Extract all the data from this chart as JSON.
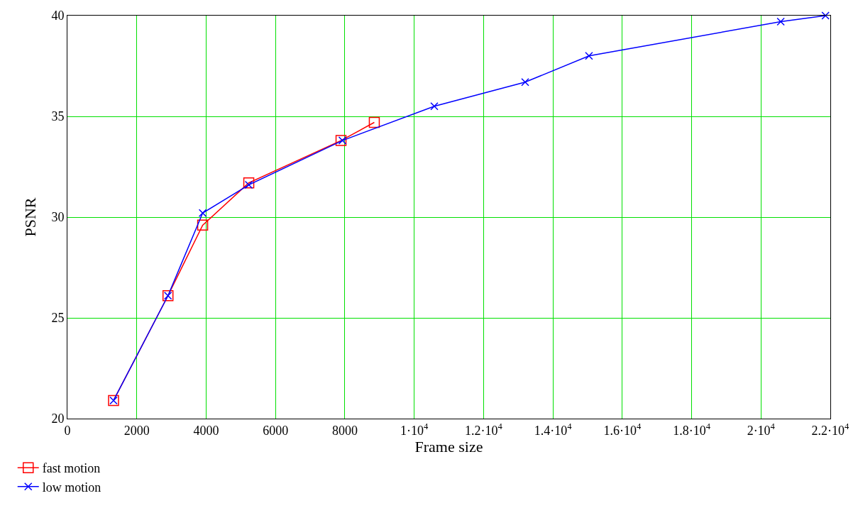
{
  "chart_data": {
    "type": "line",
    "xlabel": "Frame size",
    "ylabel": "PSNR",
    "xlim": [
      0,
      22000
    ],
    "ylim": [
      20,
      40
    ],
    "xticks": [
      0,
      2000,
      4000,
      6000,
      8000,
      {
        "value": 10000,
        "label": "1·10$^{4}$"
      },
      {
        "value": 12000,
        "label": "1.2·10$^{4}$"
      },
      {
        "value": 14000,
        "label": "1.4·10$^{4}$"
      },
      {
        "value": 16000,
        "label": "1.6·10$^{4}$"
      },
      {
        "value": 18000,
        "label": "1.8·10$^{4}$"
      },
      {
        "value": 20000,
        "label": "2·10$^{4}$"
      },
      {
        "value": 22000,
        "label": "2.2·10$^{4}$"
      }
    ],
    "yticks": [
      20,
      25,
      30,
      35,
      40
    ],
    "grid": true,
    "legend": "bottom left",
    "series": [
      {
        "name": "fast motion",
        "color": "#ff0000",
        "marker": "square",
        "x": [
          1330,
          2900,
          3900,
          5230,
          7890,
          8850
        ],
        "values": [
          20.9,
          26.1,
          29.6,
          31.7,
          33.8,
          34.7
        ]
      },
      {
        "name": "low motion",
        "color": "#0000ff",
        "marker": "cross",
        "x": [
          1330,
          2900,
          3900,
          5230,
          7930,
          10580,
          13200,
          15040,
          20570,
          21860
        ],
        "values": [
          20.9,
          26.1,
          30.2,
          31.6,
          33.8,
          35.5,
          36.7,
          38.0,
          39.7,
          40.0
        ]
      }
    ]
  }
}
